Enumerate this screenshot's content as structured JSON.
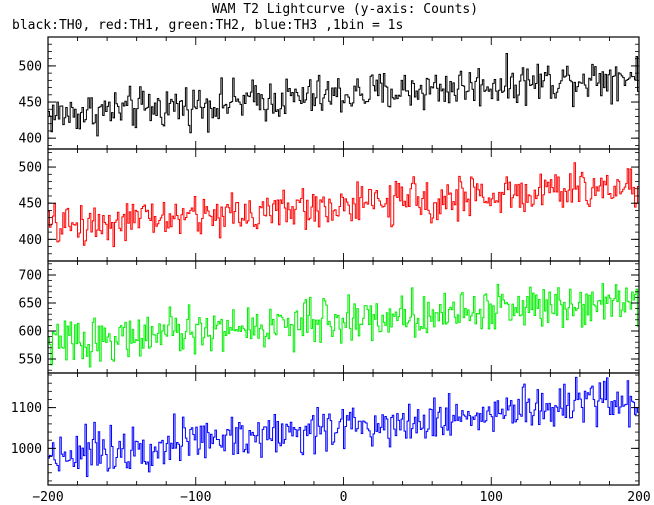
{
  "title": "WAM T2 Lightcurve (y-axis: Counts)",
  "subtitle": "black:TH0, red:TH1, green:TH2, blue:TH3 ,1bin = 1s",
  "chart_data": {
    "type": "line",
    "title": "WAM T2 Lightcurve (y-axis: Counts)",
    "subtitle": "black:TH0, red:TH1, green:TH2, blue:TH3 ,1bin = 1s",
    "xlabel": "",
    "ylabel": "Counts",
    "xlim": [
      -200,
      200
    ],
    "x_ticks": [
      "-200",
      "-100",
      "0",
      "100",
      "200"
    ],
    "bin_seconds": 1,
    "grid": false,
    "panels": [
      {
        "name": "TH0",
        "color": "#000000",
        "ylim": [
          385,
          540
        ],
        "y_ticks": [
          "400",
          "450",
          "500"
        ],
        "mean_start": 432,
        "mean_end": 488,
        "noise_amplitude": 22,
        "sample_points": [
          [
            -200,
            430
          ],
          [
            -150,
            440
          ],
          [
            -100,
            445
          ],
          [
            -50,
            450
          ],
          [
            0,
            462
          ],
          [
            50,
            468
          ],
          [
            100,
            472
          ],
          [
            150,
            478
          ],
          [
            200,
            490
          ]
        ]
      },
      {
        "name": "TH1",
        "color": "#ff0000",
        "ylim": [
          370,
          525
        ],
        "y_ticks": [
          "400",
          "450",
          "500"
        ],
        "mean_start": 418,
        "mean_end": 475,
        "noise_amplitude": 22,
        "sample_points": [
          [
            -200,
            415
          ],
          [
            -150,
            420
          ],
          [
            -100,
            428
          ],
          [
            -50,
            432
          ],
          [
            0,
            440
          ],
          [
            50,
            448
          ],
          [
            100,
            455
          ],
          [
            150,
            462
          ],
          [
            200,
            475
          ]
        ]
      },
      {
        "name": "TH2",
        "color": "#00ee00",
        "ylim": [
          525,
          725
        ],
        "y_ticks": [
          "550",
          "600",
          "650",
          "700"
        ],
        "mean_start": 578,
        "mean_end": 660,
        "noise_amplitude": 30,
        "sample_points": [
          [
            -200,
            575
          ],
          [
            -150,
            585
          ],
          [
            -100,
            595
          ],
          [
            -50,
            605
          ],
          [
            0,
            612
          ],
          [
            50,
            625
          ],
          [
            100,
            635
          ],
          [
            150,
            645
          ],
          [
            200,
            660
          ]
        ]
      },
      {
        "name": "TH3",
        "color": "#0000ff",
        "ylim": [
          910,
          1185
        ],
        "y_ticks": [
          "1000",
          "1100"
        ],
        "mean_start": 985,
        "mean_end": 1120,
        "noise_amplitude": 42,
        "sample_points": [
          [
            -200,
            985
          ],
          [
            -150,
            1005
          ],
          [
            -100,
            1025
          ],
          [
            -50,
            1040
          ],
          [
            0,
            1055
          ],
          [
            50,
            1070
          ],
          [
            100,
            1085
          ],
          [
            150,
            1100
          ],
          [
            200,
            1120
          ]
        ]
      }
    ]
  }
}
